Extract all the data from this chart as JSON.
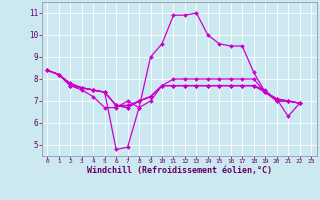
{
  "background_color": "#cce8f0",
  "grid_color": "#ffffff",
  "line_color": "#cc00cc",
  "xlabel": "Windchill (Refroidissement éolien,°C)",
  "ylim": [
    4.5,
    11.5
  ],
  "xlim": [
    -0.5,
    23.5
  ],
  "yticks": [
    5,
    6,
    7,
    8,
    9,
    10,
    11
  ],
  "xticks": [
    0,
    1,
    2,
    3,
    4,
    5,
    6,
    7,
    8,
    9,
    10,
    11,
    12,
    13,
    14,
    15,
    16,
    17,
    18,
    19,
    20,
    21,
    22,
    23
  ],
  "series": [
    {
      "x": [
        0,
        1,
        2,
        3,
        4,
        5,
        6,
        7,
        8,
        9,
        10,
        11,
        12,
        13,
        14,
        15,
        16,
        17,
        18,
        19,
        20,
        21,
        22
      ],
      "y": [
        8.4,
        8.2,
        7.7,
        7.5,
        7.2,
        6.7,
        6.7,
        7.0,
        6.7,
        9.0,
        9.6,
        10.9,
        10.9,
        11.0,
        10.0,
        9.6,
        9.5,
        9.5,
        8.3,
        7.4,
        7.1,
        6.3,
        6.9
      ]
    },
    {
      "x": [
        0,
        1,
        2,
        3,
        4,
        5,
        6,
        7,
        8,
        9,
        10,
        11,
        12,
        13,
        14,
        15,
        16,
        17,
        18,
        19,
        20,
        21,
        22
      ],
      "y": [
        8.4,
        8.2,
        7.7,
        7.6,
        7.5,
        7.4,
        4.8,
        4.9,
        6.7,
        7.0,
        7.7,
        8.0,
        8.0,
        8.0,
        8.0,
        8.0,
        8.0,
        8.0,
        8.0,
        7.4,
        7.1,
        7.0,
        6.9
      ]
    },
    {
      "x": [
        0,
        1,
        2,
        3,
        4,
        5,
        6,
        7,
        8,
        9,
        10,
        11,
        12,
        13,
        14,
        15,
        16,
        17,
        18,
        19,
        20,
        21,
        22
      ],
      "y": [
        8.4,
        8.2,
        7.7,
        7.6,
        7.5,
        7.4,
        6.8,
        6.8,
        7.0,
        7.2,
        7.7,
        7.7,
        7.7,
        7.7,
        7.7,
        7.7,
        7.7,
        7.7,
        7.7,
        7.4,
        7.1,
        7.0,
        6.9
      ]
    },
    {
      "x": [
        0,
        1,
        2,
        3,
        4,
        5,
        6,
        7,
        8,
        9,
        10,
        11,
        12,
        13,
        14,
        15,
        16,
        17,
        18,
        19,
        20,
        21,
        22
      ],
      "y": [
        8.4,
        8.2,
        7.8,
        7.6,
        7.5,
        7.4,
        6.8,
        6.7,
        7.0,
        7.2,
        7.7,
        7.7,
        7.7,
        7.7,
        7.7,
        7.7,
        7.7,
        7.7,
        7.7,
        7.4,
        7.0,
        7.0,
        6.9
      ]
    },
    {
      "x": [
        0,
        1,
        2,
        3,
        4,
        5,
        6,
        7,
        8,
        9,
        10,
        11,
        12,
        13,
        14,
        15,
        16,
        17,
        18,
        19,
        20,
        21,
        22
      ],
      "y": [
        8.4,
        8.2,
        7.8,
        7.6,
        7.5,
        7.4,
        6.8,
        6.7,
        7.0,
        7.2,
        7.7,
        7.7,
        7.7,
        7.7,
        7.7,
        7.7,
        7.7,
        7.7,
        7.7,
        7.5,
        7.0,
        7.0,
        6.9
      ]
    }
  ],
  "figsize": [
    3.2,
    2.0
  ],
  "dpi": 100,
  "xlabel_fontsize": 6.0,
  "xlabel_color": "#660066",
  "tick_fontsize_x": 4.5,
  "tick_fontsize_y": 5.5,
  "linewidth": 0.9,
  "markersize": 2.0
}
